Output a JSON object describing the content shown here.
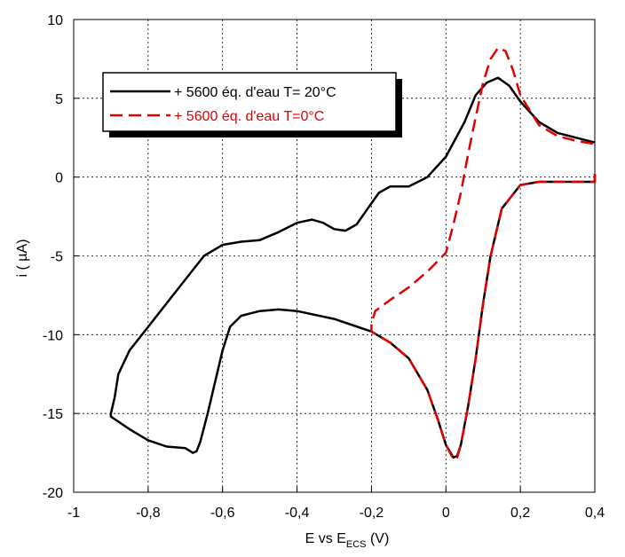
{
  "chart_data": {
    "type": "line",
    "title": "",
    "xlabel": "E vs E",
    "xlabel_sub": "ECS",
    "xlabel_unit": " (V)",
    "ylabel": "i  ( µA)",
    "xlim": [
      -1,
      0.4
    ],
    "ylim": [
      -20,
      10
    ],
    "grid": true,
    "legend_position": "top-left",
    "x_ticks": [
      {
        "v": -1,
        "label": "-1"
      },
      {
        "v": -0.8,
        "label": "-0,8"
      },
      {
        "v": -0.6,
        "label": "-0,6"
      },
      {
        "v": -0.4,
        "label": "-0,4"
      },
      {
        "v": -0.2,
        "label": "-0,2"
      },
      {
        "v": 0,
        "label": "0"
      },
      {
        "v": 0.2,
        "label": "0,2"
      },
      {
        "v": 0.4,
        "label": "0,4"
      }
    ],
    "y_ticks": [
      {
        "v": 10,
        "label": "10"
      },
      {
        "v": 5,
        "label": "5"
      },
      {
        "v": 0,
        "label": "0"
      },
      {
        "v": -5,
        "label": "-5"
      },
      {
        "v": -10,
        "label": "-10"
      },
      {
        "v": -15,
        "label": "-15"
      },
      {
        "v": -20,
        "label": "-20"
      }
    ],
    "series": [
      {
        "name": "+ 5600 éq. d'eau T= 20°C",
        "color": "#000000",
        "dash": "solid",
        "points": [
          [
            0.4,
            0.2
          ],
          [
            0.4,
            -0.3
          ],
          [
            0.3,
            -0.3
          ],
          [
            0.25,
            -0.3
          ],
          [
            0.2,
            -0.5
          ],
          [
            0.15,
            -2.0
          ],
          [
            0.12,
            -5.0
          ],
          [
            0.1,
            -8.0
          ],
          [
            0.08,
            -11.5
          ],
          [
            0.06,
            -14.5
          ],
          [
            0.04,
            -17.0
          ],
          [
            0.03,
            -17.7
          ],
          [
            0.02,
            -17.8
          ],
          [
            0.0,
            -17.0
          ],
          [
            -0.02,
            -15.5
          ],
          [
            -0.05,
            -13.5
          ],
          [
            -0.1,
            -11.5
          ],
          [
            -0.15,
            -10.5
          ],
          [
            -0.2,
            -9.8
          ],
          [
            -0.3,
            -9.0
          ],
          [
            -0.4,
            -8.5
          ],
          [
            -0.45,
            -8.4
          ],
          [
            -0.5,
            -8.5
          ],
          [
            -0.55,
            -8.8
          ],
          [
            -0.58,
            -9.5
          ],
          [
            -0.6,
            -11.0
          ],
          [
            -0.62,
            -13.0
          ],
          [
            -0.64,
            -15.0
          ],
          [
            -0.66,
            -16.8
          ],
          [
            -0.67,
            -17.4
          ],
          [
            -0.68,
            -17.5
          ],
          [
            -0.7,
            -17.2
          ],
          [
            -0.75,
            -17.1
          ],
          [
            -0.8,
            -16.7
          ],
          [
            -0.85,
            -16.0
          ],
          [
            -0.9,
            -15.2
          ],
          [
            -0.9,
            -15.0
          ],
          [
            -0.89,
            -14.0
          ],
          [
            -0.88,
            -12.5
          ],
          [
            -0.85,
            -11.0
          ],
          [
            -0.8,
            -9.5
          ],
          [
            -0.75,
            -8.0
          ],
          [
            -0.7,
            -6.5
          ],
          [
            -0.65,
            -5.0
          ],
          [
            -0.6,
            -4.3
          ],
          [
            -0.55,
            -4.1
          ],
          [
            -0.5,
            -4.0
          ],
          [
            -0.45,
            -3.5
          ],
          [
            -0.4,
            -2.9
          ],
          [
            -0.36,
            -2.7
          ],
          [
            -0.33,
            -2.9
          ],
          [
            -0.3,
            -3.3
          ],
          [
            -0.27,
            -3.4
          ],
          [
            -0.24,
            -3.0
          ],
          [
            -0.21,
            -2.0
          ],
          [
            -0.18,
            -1.0
          ],
          [
            -0.15,
            -0.6
          ],
          [
            -0.1,
            -0.6
          ],
          [
            -0.05,
            0.0
          ],
          [
            0.0,
            1.3
          ],
          [
            0.05,
            3.5
          ],
          [
            0.08,
            5.2
          ],
          [
            0.11,
            6.0
          ],
          [
            0.14,
            6.3
          ],
          [
            0.17,
            5.8
          ],
          [
            0.2,
            4.8
          ],
          [
            0.25,
            3.5
          ],
          [
            0.3,
            2.8
          ],
          [
            0.35,
            2.5
          ],
          [
            0.4,
            2.2
          ]
        ]
      },
      {
        "name": "+ 5600 éq. d'eau T=0°C",
        "color": "#e00000",
        "dash": "dashed",
        "points": [
          [
            0.4,
            0.2
          ],
          [
            0.4,
            -0.3
          ],
          [
            0.3,
            -0.3
          ],
          [
            0.25,
            -0.3
          ],
          [
            0.2,
            -0.5
          ],
          [
            0.15,
            -2.0
          ],
          [
            0.12,
            -5.0
          ],
          [
            0.1,
            -8.0
          ],
          [
            0.08,
            -11.5
          ],
          [
            0.06,
            -14.5
          ],
          [
            0.04,
            -17.0
          ],
          [
            0.03,
            -17.8
          ],
          [
            0.02,
            -17.9
          ],
          [
            0.0,
            -17.0
          ],
          [
            -0.02,
            -15.5
          ],
          [
            -0.05,
            -13.5
          ],
          [
            -0.1,
            -11.5
          ],
          [
            -0.15,
            -10.5
          ],
          [
            -0.2,
            -9.8
          ],
          [
            -0.2,
            -9.3
          ],
          [
            -0.19,
            -8.5
          ],
          [
            -0.15,
            -7.8
          ],
          [
            -0.1,
            -7.0
          ],
          [
            -0.05,
            -6.0
          ],
          [
            0.0,
            -4.8
          ],
          [
            0.02,
            -3.0
          ],
          [
            0.04,
            -1.0
          ],
          [
            0.06,
            1.5
          ],
          [
            0.08,
            3.8
          ],
          [
            0.1,
            6.0
          ],
          [
            0.12,
            7.5
          ],
          [
            0.14,
            8.2
          ],
          [
            0.16,
            8.0
          ],
          [
            0.18,
            6.8
          ],
          [
            0.2,
            5.2
          ],
          [
            0.25,
            3.3
          ],
          [
            0.3,
            2.6
          ],
          [
            0.35,
            2.3
          ],
          [
            0.4,
            2.1
          ]
        ]
      }
    ]
  }
}
